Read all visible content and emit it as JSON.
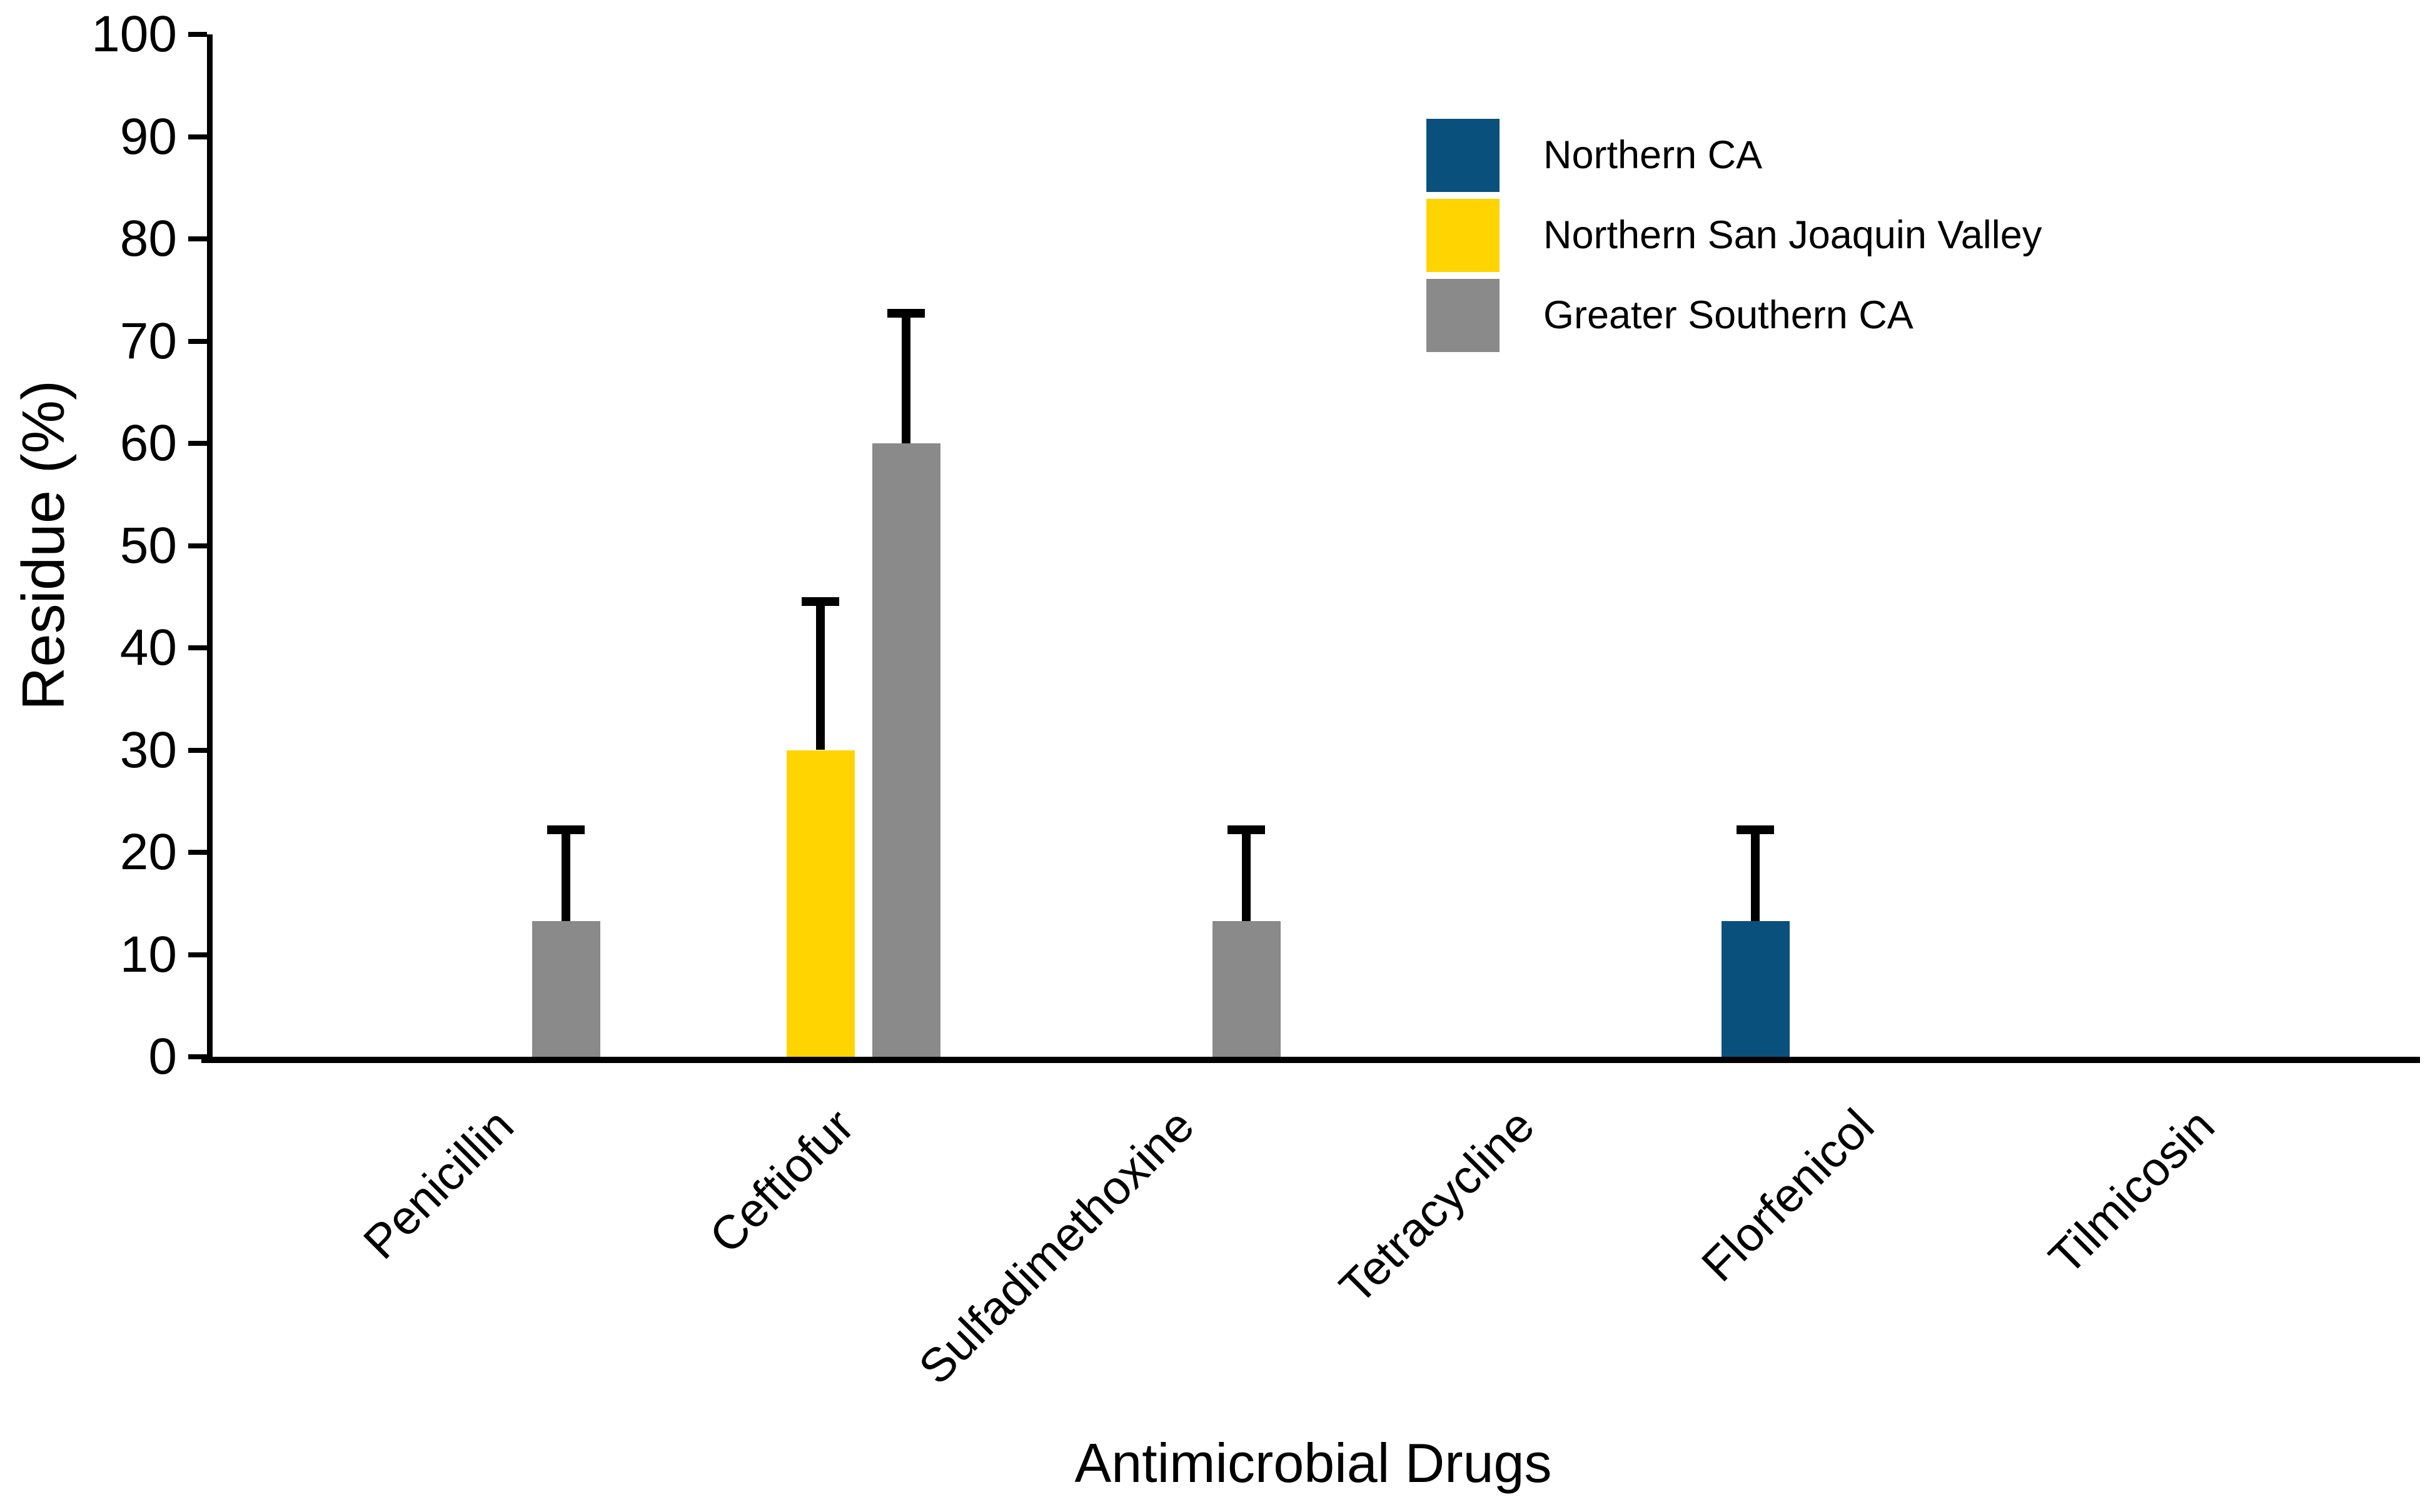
{
  "chart_data": {
    "type": "bar",
    "title": "",
    "xlabel": "Antimicrobial Drugs",
    "ylabel": "Residue (%)",
    "ylim": [
      0,
      100
    ],
    "yticks": [
      0,
      10,
      20,
      30,
      40,
      50,
      60,
      70,
      80,
      90,
      100
    ],
    "grid": false,
    "legend_position": "upper right",
    "xlabel_rotation_deg": 45,
    "background_color": "#ffffff",
    "axis_color": "#000000",
    "error_bar_style": "upper-only",
    "categories": [
      "Penicillin",
      "Ceftiofur",
      "Sulfadimethoxine",
      "Tetracycline",
      "Florfenicol",
      "Tilmicosin"
    ],
    "series": [
      {
        "name": "Northern CA",
        "color": "#0A507C",
        "values": [
          null,
          null,
          null,
          null,
          13.3,
          null
        ],
        "error_upper": [
          null,
          null,
          null,
          null,
          8.9,
          null
        ]
      },
      {
        "name": "Northern San Joaquin Valley",
        "color": "#FFD400",
        "values": [
          null,
          30,
          null,
          null,
          null,
          null
        ],
        "error_upper": [
          null,
          14.5,
          null,
          null,
          null,
          null
        ]
      },
      {
        "name": "Greater Southern CA",
        "color": "#8A8A8A",
        "values": [
          13.3,
          60,
          13.3,
          null,
          null,
          null
        ],
        "error_upper": [
          8.9,
          12.7,
          8.9,
          null,
          null,
          null
        ]
      }
    ]
  },
  "legend": {
    "items": [
      {
        "label": "Northern CA",
        "color": "#0A507C"
      },
      {
        "label": "Northern San Joaquin Valley",
        "color": "#FFD400"
      },
      {
        "label": "Greater Southern CA",
        "color": "#8A8A8A"
      }
    ]
  }
}
